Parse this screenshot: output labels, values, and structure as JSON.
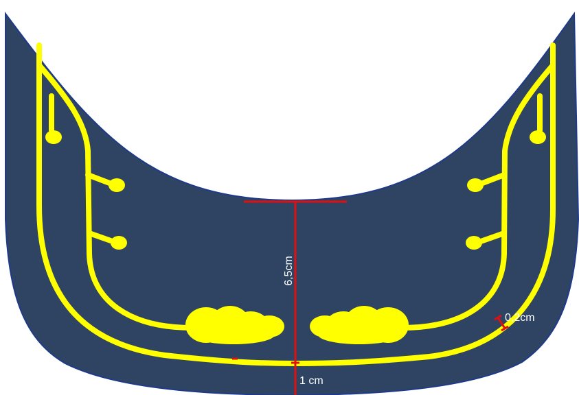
{
  "colors": {
    "background": "#ffffff",
    "shape_fill": "#2f4462",
    "shape_outline": "#1e3a8a",
    "yellow_lines": "#ffff00",
    "dimension_lines": "#dd1111",
    "label_text": "#ffffff"
  },
  "labels": {
    "height": "6,5cm",
    "bottom_margin": "1 cm",
    "line_width": "0,2cm"
  }
}
